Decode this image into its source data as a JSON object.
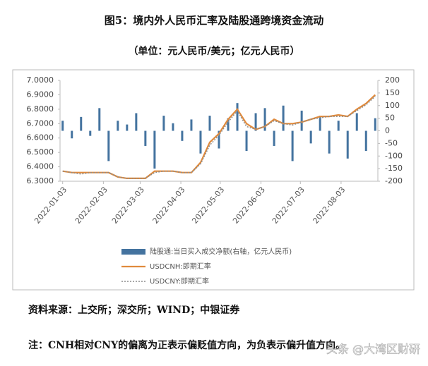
{
  "title": "图5：境内外人民币汇率及陆股通跨境资金流动",
  "subtitle": "（单位：元人民币/美元；亿元人民币）",
  "source": "资料来源：上交所；深交所；WIND；中银证券",
  "note": "注：CNH相对CNY的偏离为正表示偏贬值方向，为负表示偏升值方向。",
  "watermark": "头条 @大湾区财研",
  "chart_data": {
    "type": "combo",
    "x": [
      "2022-01-03",
      "2022-01-10",
      "2022-01-17",
      "2022-01-24",
      "2022-01-31",
      "2022-02-07",
      "2022-02-14",
      "2022-02-21",
      "2022-02-28",
      "2022-03-07",
      "2022-03-14",
      "2022-03-21",
      "2022-03-28",
      "2022-04-04",
      "2022-04-11",
      "2022-04-18",
      "2022-04-25",
      "2022-05-02",
      "2022-05-09",
      "2022-05-16",
      "2022-05-23",
      "2022-05-30",
      "2022-06-06",
      "2022-06-13",
      "2022-06-20",
      "2022-06-27",
      "2022-07-04",
      "2022-07-11",
      "2022-07-18",
      "2022-07-25",
      "2022-08-01",
      "2022-08-08",
      "2022-08-15",
      "2022-08-22",
      "2022-08-29"
    ],
    "xlim": [
      "2022-01-01",
      "2022-08-31"
    ],
    "xticks": [
      "2022-01-03",
      "2022-02-03",
      "2022-03-03",
      "2022-04-03",
      "2022-05-03",
      "2022-06-03",
      "2022-07-03",
      "2022-08-03"
    ],
    "ylim": [
      6.3,
      7.0
    ],
    "yticks": [
      {
        "value": 6.3,
        "label": "6.3000"
      },
      {
        "value": 6.4,
        "label": "6.4000"
      },
      {
        "value": 6.5,
        "label": "6.5000"
      },
      {
        "value": 6.6,
        "label": "6.6000"
      },
      {
        "value": 6.7,
        "label": "6.7000"
      },
      {
        "value": 6.8,
        "label": "6.8000"
      },
      {
        "value": 6.9,
        "label": "6.9000"
      },
      {
        "value": 7.0,
        "label": "7.0000"
      }
    ],
    "y2lim": [
      -200,
      200
    ],
    "y2ticks": [
      -200,
      -150,
      -100,
      -50,
      0,
      50,
      100,
      150,
      200
    ],
    "series": [
      {
        "name": "陆股通:当日买入成交净额(右轴，亿元人民币)",
        "type": "bar",
        "axis": "y2",
        "color": "#44739f",
        "values": [
          40,
          -30,
          55,
          -20,
          90,
          -120,
          40,
          25,
          70,
          -60,
          -150,
          60,
          30,
          -40,
          45,
          -90,
          60,
          -70,
          50,
          110,
          -80,
          70,
          90,
          -60,
          100,
          -120,
          80,
          -50,
          60,
          -90,
          40,
          -110,
          70,
          -80,
          50
        ]
      },
      {
        "name": "USDCNH:即期汇率",
        "type": "line",
        "color": "#e08a3c",
        "style": "solid",
        "values": [
          6.37,
          6.36,
          6.36,
          6.36,
          6.36,
          6.36,
          6.33,
          6.32,
          6.32,
          6.32,
          6.37,
          6.37,
          6.37,
          6.36,
          6.36,
          6.43,
          6.57,
          6.63,
          6.73,
          6.8,
          6.7,
          6.66,
          6.68,
          6.73,
          6.7,
          6.7,
          6.71,
          6.73,
          6.75,
          6.75,
          6.76,
          6.75,
          6.8,
          6.84,
          6.9
        ]
      },
      {
        "name": "USDCNY:即期汇率",
        "type": "line",
        "color": "#8c8c8c",
        "style": "dotted",
        "values": [
          6.37,
          6.36,
          6.35,
          6.36,
          6.36,
          6.36,
          6.33,
          6.32,
          6.32,
          6.32,
          6.36,
          6.37,
          6.37,
          6.36,
          6.36,
          6.42,
          6.55,
          6.62,
          6.71,
          6.79,
          6.68,
          6.66,
          6.68,
          6.72,
          6.7,
          6.69,
          6.71,
          6.73,
          6.74,
          6.75,
          6.75,
          6.75,
          6.79,
          6.83,
          6.89
        ]
      }
    ]
  }
}
